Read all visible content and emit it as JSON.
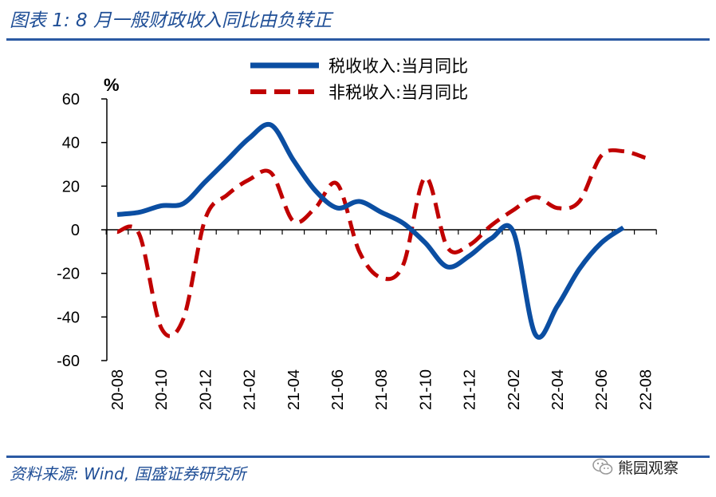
{
  "figure": {
    "title": "图表 1:  8 月一般财政收入同比由负转正",
    "source": "资料来源:  Wind,  国盛证券研究所",
    "watermark": "熊园观察"
  },
  "colors": {
    "accent": "#1f4e96",
    "series_tax": "#0b4ea2",
    "series_nontax": "#c00000"
  },
  "chart_data": {
    "type": "line",
    "ylabel": "%",
    "ylim": [
      -60,
      60
    ],
    "yticks": [
      60,
      40,
      20,
      0,
      -20,
      -40,
      -60
    ],
    "grid": false,
    "legend_position": "top-center",
    "categories": [
      "20-08",
      "20-09",
      "20-10",
      "20-11",
      "20-12",
      "21-01",
      "21-02",
      "21-03",
      "21-04",
      "21-05",
      "21-06",
      "21-07",
      "21-08",
      "21-09",
      "21-10",
      "21-11",
      "21-12",
      "22-01",
      "22-02",
      "22-03",
      "22-04",
      "22-05",
      "22-06",
      "22-07",
      "22-08"
    ],
    "tick_labels": [
      "20-08",
      "20-10",
      "20-12",
      "21-02",
      "21-04",
      "21-06",
      "21-08",
      "21-10",
      "21-12",
      "22-02",
      "22-04",
      "22-06",
      "22-08"
    ],
    "series": [
      {
        "name": "税收收入:当月同比",
        "style": "solid",
        "values": [
          7,
          8,
          11,
          12,
          22,
          32,
          42,
          48,
          32,
          18,
          10,
          13,
          8,
          3,
          -6,
          -17,
          -12,
          -4,
          -1,
          -48,
          -35,
          -18,
          -6,
          1,
          null
        ]
      },
      {
        "name": "非税收入:当月同比",
        "style": "dashed",
        "values": [
          -1,
          -2,
          -45,
          -41,
          5,
          16,
          23,
          26,
          4,
          10,
          21,
          -10,
          -22,
          -16,
          24,
          -8,
          -7,
          2,
          9,
          15,
          10,
          13,
          34,
          36,
          33
        ]
      }
    ]
  }
}
